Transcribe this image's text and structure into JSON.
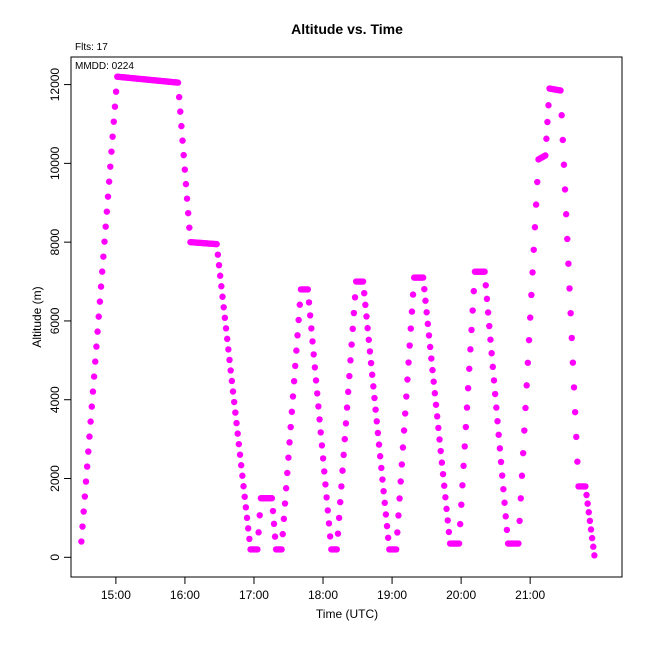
{
  "header": {
    "title": "Altitude  vs. Time",
    "flights_label": "Flts: 17",
    "date_label": "MMDD: 0224"
  },
  "chart_data": {
    "type": "scatter",
    "title": "Altitude  vs. Time",
    "xlabel": "Time (UTC)",
    "ylabel": "Altitude (m)",
    "x_unit": "hours UTC",
    "xlim": [
      14.35,
      22.33
    ],
    "ylim": [
      -500,
      12700
    ],
    "x_ticks": [
      {
        "value": 15,
        "label": "15:00"
      },
      {
        "value": 16,
        "label": "16:00"
      },
      {
        "value": 17,
        "label": "17:00"
      },
      {
        "value": 18,
        "label": "18:00"
      },
      {
        "value": 19,
        "label": "19:00"
      },
      {
        "value": 20,
        "label": "20:00"
      },
      {
        "value": 21,
        "label": "21:00"
      }
    ],
    "y_ticks": [
      0,
      2000,
      4000,
      6000,
      8000,
      10000,
      12000
    ],
    "grid": false,
    "marker_color": "#ff00ff",
    "series": [
      {
        "segments": [
          {
            "t0": 14.5,
            "t1": 15.02,
            "a0": 400,
            "a1": 12200
          },
          {
            "t0": 15.02,
            "t1": 15.9,
            "a0": 12200,
            "a1": 12050
          },
          {
            "t0": 15.9,
            "t1": 16.08,
            "a0": 12050,
            "a1": 8000
          },
          {
            "t0": 16.08,
            "t1": 16.46,
            "a0": 8000,
            "a1": 7950
          },
          {
            "t0": 16.46,
            "t1": 16.95,
            "a0": 7950,
            "a1": 200
          },
          {
            "t0": 16.95,
            "t1": 17.05,
            "a0": 200,
            "a1": 200
          },
          {
            "t0": 17.05,
            "t1": 17.1,
            "a0": 200,
            "a1": 1500
          },
          {
            "t0": 17.1,
            "t1": 17.26,
            "a0": 1500,
            "a1": 1500
          },
          {
            "t0": 17.26,
            "t1": 17.32,
            "a0": 1500,
            "a1": 200
          },
          {
            "t0": 17.32,
            "t1": 17.4,
            "a0": 200,
            "a1": 200
          },
          {
            "t0": 17.4,
            "t1": 17.68,
            "a0": 200,
            "a1": 6800
          },
          {
            "t0": 17.68,
            "t1": 17.78,
            "a0": 6800,
            "a1": 6800
          },
          {
            "t0": 17.78,
            "t1": 18.12,
            "a0": 6800,
            "a1": 200
          },
          {
            "t0": 18.12,
            "t1": 18.2,
            "a0": 200,
            "a1": 200
          },
          {
            "t0": 18.2,
            "t1": 18.48,
            "a0": 200,
            "a1": 7000
          },
          {
            "t0": 18.48,
            "t1": 18.58,
            "a0": 7000,
            "a1": 7000
          },
          {
            "t0": 18.58,
            "t1": 18.96,
            "a0": 7000,
            "a1": 200
          },
          {
            "t0": 18.96,
            "t1": 19.06,
            "a0": 200,
            "a1": 200
          },
          {
            "t0": 19.06,
            "t1": 19.32,
            "a0": 200,
            "a1": 7100
          },
          {
            "t0": 19.32,
            "t1": 19.45,
            "a0": 7100,
            "a1": 7100
          },
          {
            "t0": 19.45,
            "t1": 19.84,
            "a0": 7100,
            "a1": 350
          },
          {
            "t0": 19.84,
            "t1": 19.97,
            "a0": 350,
            "a1": 350
          },
          {
            "t0": 19.97,
            "t1": 20.2,
            "a0": 350,
            "a1": 7250
          },
          {
            "t0": 20.2,
            "t1": 20.34,
            "a0": 7250,
            "a1": 7250
          },
          {
            "t0": 20.34,
            "t1": 20.68,
            "a0": 7250,
            "a1": 350
          },
          {
            "t0": 20.68,
            "t1": 20.83,
            "a0": 350,
            "a1": 350
          },
          {
            "t0": 20.83,
            "t1": 21.12,
            "a0": 350,
            "a1": 10100
          },
          {
            "t0": 21.12,
            "t1": 21.22,
            "a0": 10100,
            "a1": 10200
          },
          {
            "t0": 21.22,
            "t1": 21.28,
            "a0": 10200,
            "a1": 11900
          },
          {
            "t0": 21.28,
            "t1": 21.44,
            "a0": 11900,
            "a1": 11850
          },
          {
            "t0": 21.44,
            "t1": 21.7,
            "a0": 11850,
            "a1": 1800
          },
          {
            "t0": 21.7,
            "t1": 21.8,
            "a0": 1800,
            "a1": 1800
          },
          {
            "t0": 21.8,
            "t1": 21.93,
            "a0": 1800,
            "a1": 50
          }
        ]
      }
    ]
  }
}
